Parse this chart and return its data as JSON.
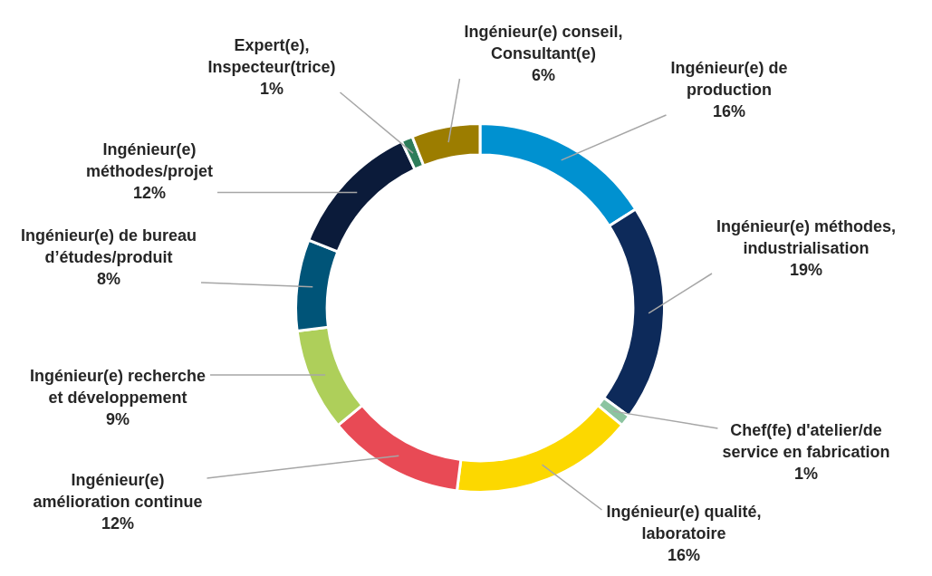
{
  "chart_data": {
    "type": "donut",
    "categories": [
      "Ingénieur(e) de production",
      "Ingénieur(e) méthodes, industrialisation",
      "Chef(fe) d'atelier/de service en fabrication",
      "Ingénieur(e) qualité, laboratoire",
      "Ingénieur(e) amélioration continue",
      "Ingénieur(e) recherche et développement",
      "Ingénieur(e) de bureau d’études/produit",
      "Ingénieur(e) méthodes/projet",
      "Expert(e), Inspecteur(trice)",
      "Ingénieur(e) conseil, Consultant(e)"
    ],
    "values": [
      16,
      19,
      1,
      16,
      12,
      9,
      8,
      12,
      1,
      6
    ],
    "value_labels": [
      "16%",
      "19%",
      "1%",
      "16%",
      "12%",
      "9%",
      "8%",
      "12%",
      "1%",
      "6%"
    ],
    "colors": [
      "#0091d0",
      "#0d2a5a",
      "#8cc4a0",
      "#fcd800",
      "#e84a55",
      "#aecf5a",
      "#005478",
      "#0b1b3a",
      "#2e7d5a",
      "#9c7d00"
    ],
    "legend": false
  }
}
